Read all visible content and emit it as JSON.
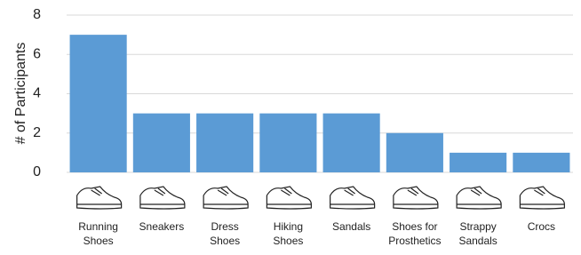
{
  "chart_data": {
    "type": "bar",
    "y_label": "# of Participants",
    "categories": [
      "Running\nShoes",
      "Sneakers",
      "Dress\nShoes",
      "Hiking\nShoes",
      "Sandals",
      "Shoes for\nProsthetics",
      "Strappy\nSandals",
      "Crocs"
    ],
    "values": [
      7,
      3,
      3,
      3,
      3,
      2,
      1,
      1
    ],
    "color": "#5b9bd5",
    "ylim": [
      0,
      8
    ],
    "yticks": [
      0,
      2,
      4,
      6,
      8
    ],
    "grid": true
  }
}
